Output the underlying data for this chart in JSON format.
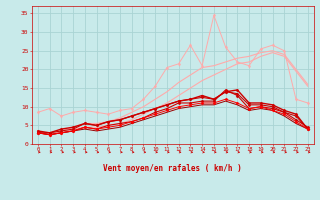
{
  "x": [
    0,
    1,
    2,
    3,
    4,
    5,
    6,
    7,
    8,
    9,
    10,
    11,
    12,
    13,
    14,
    15,
    16,
    17,
    18,
    19,
    20,
    21,
    22,
    23
  ],
  "series": [
    {
      "color": "#ffaaaa",
      "lw": 0.7,
      "marker": "d",
      "ms": 1.8,
      "values": [
        8.5,
        9.5,
        7.5,
        8.5,
        9.0,
        8.5,
        8.0,
        9.0,
        9.5,
        12.0,
        15.5,
        20.5,
        21.5,
        26.5,
        21.0,
        34.5,
        26.0,
        22.0,
        21.0,
        25.5,
        26.5,
        25.0,
        12.0,
        11.0
      ]
    },
    {
      "color": "#ffaaaa",
      "lw": 0.8,
      "marker": null,
      "ms": 0,
      "values": [
        3.0,
        2.5,
        3.5,
        4.5,
        5.5,
        5.5,
        6.0,
        7.0,
        8.5,
        10.0,
        12.0,
        14.0,
        16.5,
        18.5,
        20.5,
        21.0,
        22.0,
        23.0,
        23.5,
        24.5,
        25.0,
        24.0,
        20.0,
        16.0
      ]
    },
    {
      "color": "#ffaaaa",
      "lw": 0.8,
      "marker": null,
      "ms": 0,
      "values": [
        3.0,
        2.5,
        3.0,
        4.0,
        4.5,
        4.5,
        5.0,
        5.5,
        6.5,
        8.0,
        9.5,
        11.0,
        13.0,
        15.0,
        17.0,
        18.5,
        20.0,
        21.5,
        22.0,
        23.5,
        24.5,
        23.5,
        19.5,
        15.5
      ]
    },
    {
      "color": "#cc0000",
      "lw": 0.8,
      "marker": "D",
      "ms": 1.5,
      "values": [
        3.0,
        2.5,
        3.0,
        3.5,
        4.5,
        4.0,
        5.0,
        5.5,
        6.0,
        7.0,
        8.5,
        9.5,
        11.0,
        11.0,
        11.5,
        11.5,
        14.5,
        13.0,
        9.5,
        10.0,
        9.5,
        8.5,
        6.5,
        4.5
      ]
    },
    {
      "color": "#cc0000",
      "lw": 0.8,
      "marker": "D",
      "ms": 1.5,
      "values": [
        3.0,
        3.0,
        3.5,
        4.0,
        5.5,
        5.0,
        6.0,
        6.5,
        7.5,
        8.5,
        9.5,
        10.5,
        11.5,
        12.0,
        12.5,
        12.0,
        14.0,
        13.5,
        10.5,
        10.5,
        10.0,
        8.5,
        7.5,
        4.0
      ]
    },
    {
      "color": "#cc0000",
      "lw": 1.0,
      "marker": "D",
      "ms": 1.5,
      "values": [
        3.5,
        3.0,
        4.0,
        4.5,
        5.5,
        5.0,
        6.0,
        6.5,
        7.5,
        8.5,
        9.5,
        10.5,
        11.5,
        12.0,
        13.0,
        12.0,
        14.0,
        14.5,
        11.0,
        11.0,
        10.5,
        9.0,
        8.0,
        4.0
      ]
    },
    {
      "color": "#990000",
      "lw": 0.7,
      "marker": null,
      "ms": 0,
      "values": [
        3.0,
        2.5,
        3.0,
        3.5,
        4.0,
        3.5,
        4.0,
        4.5,
        5.5,
        6.5,
        7.5,
        8.5,
        9.5,
        10.0,
        10.5,
        10.5,
        11.5,
        10.5,
        9.0,
        9.5,
        9.0,
        7.5,
        5.5,
        4.0
      ]
    },
    {
      "color": "#ff0000",
      "lw": 0.7,
      "marker": "D",
      "ms": 1.5,
      "values": [
        3.0,
        2.5,
        3.0,
        3.5,
        4.5,
        4.0,
        4.5,
        5.0,
        6.0,
        7.0,
        8.0,
        9.0,
        10.0,
        10.5,
        11.0,
        11.0,
        12.0,
        11.0,
        9.5,
        10.0,
        9.0,
        8.0,
        6.0,
        4.0
      ]
    }
  ],
  "xlabel": "Vent moyen/en rafales ( km/h )",
  "xlim": [
    -0.5,
    23.5
  ],
  "ylim": [
    0,
    37
  ],
  "yticks": [
    0,
    5,
    10,
    15,
    20,
    25,
    30,
    35
  ],
  "xticks": [
    0,
    1,
    2,
    3,
    4,
    5,
    6,
    7,
    8,
    9,
    10,
    11,
    12,
    13,
    14,
    15,
    16,
    17,
    18,
    19,
    20,
    21,
    22,
    23
  ],
  "bg_color": "#c8eaea",
  "grid_color": "#aad4d4",
  "tick_color": "#cc0000",
  "label_color": "#cc0000",
  "arrow_color": "#cc0000"
}
